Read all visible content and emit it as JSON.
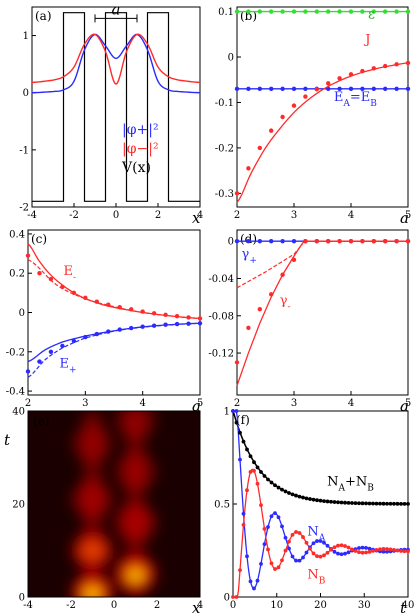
{
  "chart_data": [
    {
      "id": "a",
      "type": "line",
      "panel_label": "(a)",
      "xlabel": "x",
      "ylabel": "",
      "xlim": [
        -4,
        4
      ],
      "ylim": [
        -2,
        1.5
      ],
      "xticks": [
        "-4",
        "-2",
        "0",
        "2",
        "4"
      ],
      "yticks": [
        "1",
        "0",
        "-1",
        "-2"
      ],
      "annotation_a": "a",
      "legend": [
        {
          "text": "|φ+|²",
          "color": "#2b2bff"
        },
        {
          "text": "|φ−|²",
          "color": "#ff2b2b"
        },
        {
          "text": "V(x)",
          "color": "#000000"
        }
      ],
      "series": [
        {
          "name": "V(x)",
          "color": "#000000",
          "x": [
            -4,
            -2.5,
            -2.5,
            -1.5,
            -1.5,
            -0.5,
            -0.5,
            0.5,
            0.5,
            1.5,
            1.5,
            2.5,
            2.5,
            4
          ],
          "y": [
            -1.9,
            -1.9,
            1.4,
            1.4,
            -1.9,
            -1.9,
            1.4,
            1.4,
            -1.9,
            -1.9,
            1.4,
            1.4,
            -1.9,
            -1.9
          ]
        },
        {
          "name": "blue",
          "color": "#2b2bff",
          "x": [
            -4,
            -3,
            -2.5,
            -2,
            -1.5,
            -1,
            -0.5,
            0,
            0.5,
            1,
            1.5,
            2,
            2.5,
            3,
            4
          ],
          "y": [
            0.0,
            0.02,
            0.05,
            0.2,
            0.75,
            1.02,
            0.82,
            0.6,
            0.82,
            1.02,
            0.75,
            0.2,
            0.05,
            0.02,
            0.0
          ]
        },
        {
          "name": "red",
          "color": "#ff2b2b",
          "x": [
            -4,
            -3,
            -2.5,
            -2,
            -1.5,
            -1,
            -0.5,
            0,
            0.5,
            1,
            1.5,
            2,
            2.5,
            3,
            4
          ],
          "y": [
            0.18,
            0.22,
            0.28,
            0.45,
            0.85,
            1.02,
            0.72,
            0.15,
            0.72,
            1.02,
            0.85,
            0.45,
            0.28,
            0.22,
            0.18
          ]
        }
      ]
    },
    {
      "id": "b",
      "type": "line",
      "panel_label": "(b)",
      "xlabel": "a",
      "ylabel": "",
      "xlim": [
        2,
        5
      ],
      "ylim": [
        -0.33,
        0.11
      ],
      "xticks": [
        "2",
        "3",
        "4",
        "5"
      ],
      "yticks": [
        "0.1",
        "0",
        "-0.1",
        "-0.2",
        "-0.3"
      ],
      "labels": [
        {
          "text": "ε",
          "color": "#22aa22"
        },
        {
          "text": "J",
          "color": "#ff2b2b"
        },
        {
          "text": "E",
          "sub": "A",
          "mid": "=E",
          "sub2": "B",
          "color": "#2b2bff"
        }
      ],
      "series": [
        {
          "name": "eps",
          "color": "#33dd33",
          "x": [
            2,
            5
          ],
          "y": [
            0.1,
            0.1
          ],
          "points_x": [
            2,
            2.2,
            2.4,
            2.6,
            2.8,
            3,
            3.2,
            3.4,
            3.6,
            3.8,
            4,
            4.2,
            4.4,
            4.6,
            4.8,
            5
          ],
          "points_y": [
            0.1,
            0.1,
            0.1,
            0.1,
            0.1,
            0.1,
            0.1,
            0.1,
            0.1,
            0.1,
            0.1,
            0.1,
            0.1,
            0.1,
            0.1,
            0.1
          ]
        },
        {
          "name": "EAB",
          "color": "#2b2bff",
          "x": [
            2,
            5
          ],
          "y": [
            -0.07,
            -0.07
          ],
          "points_x": [
            2,
            2.2,
            2.4,
            2.6,
            2.8,
            3,
            3.2,
            3.4,
            3.6,
            3.8,
            4,
            4.2,
            4.4,
            4.6,
            4.8,
            5
          ],
          "points_y": [
            -0.07,
            -0.07,
            -0.07,
            -0.07,
            -0.07,
            -0.07,
            -0.07,
            -0.07,
            -0.07,
            -0.07,
            -0.07,
            -0.07,
            -0.07,
            -0.07,
            -0.07,
            -0.07
          ]
        },
        {
          "name": "J",
          "color": "#ff2b2b",
          "x": [
            2,
            2.25,
            2.5,
            2.75,
            3,
            3.25,
            3.5,
            3.75,
            4,
            4.25,
            4.5,
            4.75,
            5
          ],
          "y": [
            -0.32,
            -0.255,
            -0.2,
            -0.158,
            -0.122,
            -0.094,
            -0.072,
            -0.055,
            -0.042,
            -0.032,
            -0.024,
            -0.018,
            -0.013
          ],
          "points_x": [
            2,
            2.2,
            2.4,
            2.6,
            2.8,
            3,
            3.2,
            3.4,
            3.6,
            3.8,
            4,
            4.2,
            4.4,
            4.6,
            4.8,
            5
          ],
          "points_y": [
            -0.3,
            -0.245,
            -0.2,
            -0.162,
            -0.132,
            -0.107,
            -0.087,
            -0.071,
            -0.058,
            -0.047,
            -0.038,
            -0.031,
            -0.025,
            -0.02,
            -0.016,
            -0.013
          ]
        }
      ]
    },
    {
      "id": "c",
      "type": "line",
      "panel_label": "(c)",
      "xlabel": "a",
      "ylabel": "",
      "xlim": [
        2,
        5
      ],
      "ylim": [
        -0.42,
        0.42
      ],
      "xticks": [
        "2",
        "3",
        "4",
        "5"
      ],
      "yticks": [
        "0.4",
        "0.2",
        "0",
        "-0.2",
        "-0.4"
      ],
      "labels": [
        {
          "text": "E",
          "sub": "-",
          "color": "#ff2b2b"
        },
        {
          "text": "E",
          "sub": "+",
          "color": "#2b2bff"
        }
      ],
      "series": [
        {
          "name": "Em",
          "color": "#ff2b2b",
          "x": [
            2,
            2.2,
            2.4,
            2.6,
            2.8,
            3,
            3.3,
            3.6,
            4,
            4.5,
            5
          ],
          "y": [
            0.35,
            0.26,
            0.19,
            0.14,
            0.1,
            0.07,
            0.04,
            0.02,
            0.0,
            -0.018,
            -0.03
          ],
          "dashed_x": [
            2,
            2.5,
            3,
            3.5,
            4,
            4.5,
            5
          ],
          "dashed_y": [
            0.27,
            0.14,
            0.07,
            0.03,
            0.0,
            -0.018,
            -0.03
          ],
          "points_x": [
            2,
            2.2,
            2.4,
            2.6,
            2.8,
            3,
            3.2,
            3.4,
            3.6,
            3.8,
            4,
            4.2,
            4.4,
            4.6,
            4.8,
            5
          ],
          "points_y": [
            0.29,
            0.2,
            0.17,
            0.13,
            0.1,
            0.075,
            0.055,
            0.04,
            0.027,
            0.016,
            0.005,
            -0.004,
            -0.012,
            -0.019,
            -0.025,
            -0.03
          ]
        },
        {
          "name": "Ep",
          "color": "#2b2bff",
          "x": [
            2,
            2.3,
            2.6,
            3,
            3.4,
            3.8,
            4.2,
            4.6,
            5
          ],
          "y": [
            -0.25,
            -0.19,
            -0.15,
            -0.12,
            -0.098,
            -0.08,
            -0.068,
            -0.06,
            -0.055
          ],
          "dashed_x": [
            2,
            2.3,
            2.6,
            3,
            3.5,
            4,
            4.5,
            5
          ],
          "dashed_y": [
            -0.33,
            -0.24,
            -0.18,
            -0.13,
            -0.095,
            -0.075,
            -0.063,
            -0.055
          ],
          "points_x": [
            2,
            2.2,
            2.4,
            2.6,
            2.8,
            3,
            3.2,
            3.4,
            3.6,
            3.8,
            4,
            4.2,
            4.4,
            4.6,
            4.8,
            5
          ],
          "points_y": [
            -0.3,
            -0.25,
            -0.2,
            -0.17,
            -0.145,
            -0.125,
            -0.11,
            -0.097,
            -0.087,
            -0.079,
            -0.072,
            -0.067,
            -0.062,
            -0.059,
            -0.057,
            -0.055
          ]
        }
      ]
    },
    {
      "id": "d",
      "type": "line",
      "panel_label": "(d)",
      "xlabel": "a",
      "ylabel": "",
      "xlim": [
        2,
        5
      ],
      "ylim": [
        -0.165,
        0.012
      ],
      "xticks": [
        "2",
        "3",
        "4",
        "5"
      ],
      "yticks": [
        "0",
        "-0.04",
        "-0.08",
        "-0.12"
      ],
      "labels": [
        {
          "text": "γ",
          "sub": "+",
          "color": "#2b2bff"
        },
        {
          "text": "γ",
          "sub": "-",
          "color": "#ff2b2b"
        }
      ],
      "series": [
        {
          "name": "gp",
          "color": "#2b2bff",
          "x": [
            2,
            5
          ],
          "y": [
            0,
            0
          ],
          "points_x": [
            2,
            2.2,
            2.4,
            2.6,
            2.8,
            3,
            3.2,
            3.4,
            3.6,
            3.8,
            4,
            4.2,
            4.4,
            4.6,
            4.8,
            5
          ],
          "points_y": [
            0,
            0,
            0,
            0,
            0,
            0,
            0,
            0,
            0,
            0,
            0,
            0,
            0,
            0,
            0,
            0
          ]
        },
        {
          "name": "gm",
          "color": "#ff2b2b",
          "x": [
            2,
            2.2,
            2.4,
            2.6,
            2.8,
            3,
            3.15,
            3.2,
            5
          ],
          "y": [
            -0.155,
            -0.12,
            -0.088,
            -0.06,
            -0.036,
            -0.016,
            -0.002,
            0,
            0
          ],
          "dashed_x": [
            2,
            2.5,
            3,
            3.15
          ],
          "dashed_y": [
            -0.05,
            -0.033,
            -0.014,
            -0.003
          ],
          "points_x": [
            2,
            2.2,
            2.4,
            2.6,
            2.8,
            3,
            3.2,
            3.4,
            3.6,
            3.8,
            4,
            4.2,
            4.4,
            4.6,
            4.8,
            5
          ],
          "points_y": [
            -0.13,
            -0.093,
            -0.073,
            -0.057,
            -0.036,
            -0.02,
            0,
            0,
            0,
            0,
            0,
            0,
            0,
            0,
            0,
            0
          ]
        }
      ]
    },
    {
      "id": "e",
      "type": "heatmap",
      "panel_label": "(e)",
      "xlabel": "x",
      "ylabel": "t",
      "xlim": [
        -4,
        4
      ],
      "ylim": [
        0,
        40
      ],
      "xticks": [
        "-4",
        "-2",
        "0",
        "2",
        "4"
      ],
      "yticks": [
        "40",
        "20",
        "0"
      ],
      "blobs": [
        {
          "x": -1,
          "t": 1,
          "amp": 1.0
        },
        {
          "x": 1,
          "t": 5,
          "amp": 0.85
        },
        {
          "x": -1,
          "t": 10,
          "amp": 0.7
        },
        {
          "x": 1,
          "t": 16,
          "amp": 0.5
        },
        {
          "x": -1,
          "t": 21,
          "amp": 0.42
        },
        {
          "x": 1,
          "t": 27,
          "amp": 0.35
        },
        {
          "x": -1,
          "t": 33,
          "amp": 0.3
        },
        {
          "x": 1,
          "t": 38,
          "amp": 0.28
        }
      ]
    },
    {
      "id": "f",
      "type": "line",
      "panel_label": "(f)",
      "xlabel": "t",
      "ylabel": "",
      "xlim": [
        0,
        40
      ],
      "ylim": [
        0,
        1
      ],
      "xticks": [
        "0",
        "10",
        "20",
        "30",
        "40"
      ],
      "yticks": [
        "1",
        "0.5",
        "0"
      ],
      "labels": [
        {
          "text": "N",
          "sub": "A",
          "mid": "+N",
          "sub2": "B",
          "color": "#000000"
        },
        {
          "text": "N",
          "sub": "A",
          "color": "#2b2bff"
        },
        {
          "text": "N",
          "sub": "B",
          "color": "#ff2b2b"
        }
      ],
      "params": {
        "tau": 6,
        "asym": 0.5,
        "period": 10,
        "damp": 9,
        "osc_asym": 0.25
      }
    }
  ]
}
